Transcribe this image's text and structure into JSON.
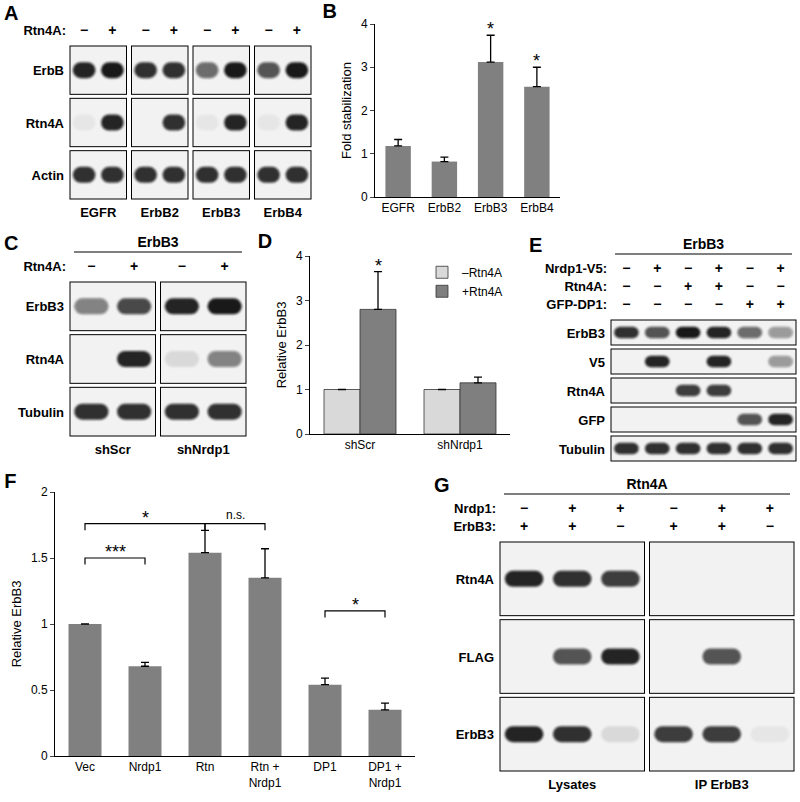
{
  "chart_data": [
    {
      "type": "bar",
      "title": "B",
      "categories": [
        "EGFR",
        "ErbB2",
        "ErbB3",
        "ErbB4"
      ],
      "values": [
        1.18,
        0.82,
        3.12,
        2.55
      ],
      "errors": [
        0.15,
        0.1,
        0.62,
        0.45
      ],
      "color": "#808080",
      "ylabel": "Fold stabilization",
      "ylim": [
        0,
        4
      ],
      "yticks": [
        0,
        1,
        2,
        3,
        4
      ],
      "grid": false,
      "annotations": [
        {
          "text": "*",
          "category": "ErbB3"
        },
        {
          "text": "*",
          "category": "ErbB4"
        }
      ]
    },
    {
      "type": "bar",
      "title": "D",
      "categories": [
        "shScr",
        "shNrdp1"
      ],
      "series": [
        {
          "name": "–Rtn4A",
          "color": "#d9d9d9",
          "values": [
            1,
            1
          ],
          "errors": [
            0,
            0
          ]
        },
        {
          "name": "+Rtn4A",
          "color": "#7f7f7f",
          "values": [
            2.8,
            1.15
          ],
          "errors": [
            0.85,
            0.13
          ]
        }
      ],
      "ylabel": "Relative ErbB3",
      "ylim": [
        0,
        4
      ],
      "yticks": [
        0,
        1,
        2,
        3,
        4
      ],
      "grid": false,
      "legend": "top right",
      "annotations": [
        {
          "text": "*",
          "category": "shScr",
          "series": "+Rtn4A"
        }
      ]
    },
    {
      "type": "bar",
      "title": "F",
      "categories": [
        "Vec",
        "Nrdp1",
        "Rtn",
        "Rtn + Nrdp1",
        "DP1",
        "DP1 + Nrdp1"
      ],
      "values": [
        1,
        0.68,
        1.54,
        1.35,
        0.54,
        0.35
      ],
      "errors": [
        0,
        0.03,
        0.17,
        0.22,
        0.05,
        0.05
      ],
      "color": "#808080",
      "ylabel": "Relative ErbB3",
      "ylim": [
        0,
        2
      ],
      "yticks": [
        0,
        0.5,
        1,
        1.5,
        2
      ],
      "grid": false,
      "annotations": [
        {
          "text": "***",
          "from": "Vec",
          "to": "Nrdp1",
          "y": 1.5
        },
        {
          "text": "*",
          "from": "Vec",
          "to": "Rtn",
          "y": 1.76
        },
        {
          "text": "n.s.",
          "from": "Rtn",
          "to": "Rtn + Nrdp1",
          "y": 1.76
        },
        {
          "text": "*",
          "from": "DP1",
          "to": "DP1 + Nrdp1",
          "y": 1.1
        }
      ]
    }
  ],
  "blots": [
    {
      "letter": "A",
      "conditions": [
        {
          "label": "Rtn4A:",
          "signs": [
            "−",
            "+",
            "−",
            "+",
            "−",
            "+",
            "−",
            "+"
          ]
        }
      ],
      "rows": [
        {
          "label": "ErbB",
          "bands": [
            0.9,
            0.95,
            0.85,
            0.85,
            0.6,
            0.95,
            0.7,
            0.95
          ]
        },
        {
          "label": "Rtn4A",
          "bands": [
            0.05,
            0.9,
            0,
            0.85,
            0.05,
            0.9,
            0.05,
            0.9
          ]
        },
        {
          "label": "Actin",
          "bands": [
            0.85,
            0.85,
            0.85,
            0.85,
            0.85,
            0.85,
            0.85,
            0.85
          ]
        }
      ],
      "groups": [
        {
          "label": "EGFR",
          "lanes": [
            0,
            1
          ]
        },
        {
          "label": "ErbB2",
          "lanes": [
            2,
            3
          ]
        },
        {
          "label": "ErbB3",
          "lanes": [
            4,
            5
          ]
        },
        {
          "label": "ErbB4",
          "lanes": [
            6,
            7
          ]
        }
      ]
    },
    {
      "letter": "C",
      "header": "ErbB3",
      "conditions": [
        {
          "label": "Rtn4A:",
          "signs": [
            "−",
            "+",
            "−",
            "+"
          ]
        }
      ],
      "rows": [
        {
          "label": "ErbB3",
          "bands": [
            0.5,
            0.75,
            0.9,
            0.95
          ]
        },
        {
          "label": "Rtn4A",
          "bands": [
            0,
            0.9,
            0.1,
            0.5
          ]
        },
        {
          "label": "Tubulin",
          "bands": [
            0.85,
            0.85,
            0.85,
            0.85
          ]
        }
      ],
      "groups": [
        {
          "label": "shScr",
          "lanes": [
            0,
            1
          ]
        },
        {
          "label": "shNrdp1",
          "lanes": [
            2,
            3
          ]
        }
      ]
    },
    {
      "letter": "E",
      "header": "ErbB3",
      "conditions": [
        {
          "label": "Nrdp1-V5:",
          "signs": [
            "−",
            "+",
            "−",
            "+",
            "−",
            "+"
          ]
        },
        {
          "label": "Rtn4A:",
          "signs": [
            "−",
            "−",
            "+",
            "+",
            "−",
            "−"
          ]
        },
        {
          "label": "GFP-DP1:",
          "signs": [
            "−",
            "−",
            "−",
            "−",
            "+",
            "+"
          ]
        }
      ],
      "rows": [
        {
          "label": "ErbB3",
          "bands": [
            0.85,
            0.7,
            0.95,
            0.9,
            0.6,
            0.4
          ]
        },
        {
          "label": "V5",
          "bands": [
            0,
            0.9,
            0,
            0.9,
            0,
            0.4
          ]
        },
        {
          "label": "Rtn4A",
          "bands": [
            0,
            0,
            0.8,
            0.8,
            0,
            0
          ]
        },
        {
          "label": "GFP",
          "bands": [
            0,
            0,
            0,
            0,
            0.7,
            0.9
          ]
        },
        {
          "label": "Tubulin",
          "bands": [
            0.85,
            0.85,
            0.85,
            0.85,
            0.85,
            0.85
          ]
        }
      ]
    },
    {
      "letter": "G",
      "header": "Rtn4A",
      "conditions": [
        {
          "label": "Nrdp1:",
          "signs": [
            "−",
            "+",
            "+",
            "−",
            "+",
            "+"
          ]
        },
        {
          "label": "ErbB3:",
          "signs": [
            "+",
            "+",
            "−",
            "+",
            "+",
            "−"
          ]
        }
      ],
      "rows": [
        {
          "label": "Rtn4A",
          "bands": [
            0.9,
            0.85,
            0.8,
            0,
            0,
            0
          ]
        },
        {
          "label": "FLAG",
          "bands": [
            0,
            0.7,
            0.9,
            0,
            0.7,
            0
          ]
        },
        {
          "label": "ErbB3",
          "bands": [
            0.9,
            0.85,
            0.1,
            0.8,
            0.8,
            0.05
          ]
        }
      ],
      "groups": [
        {
          "label": "Lysates",
          "lanes": [
            0,
            2
          ]
        },
        {
          "label": "IP ErbB3",
          "lanes": [
            3,
            5
          ]
        }
      ]
    }
  ]
}
